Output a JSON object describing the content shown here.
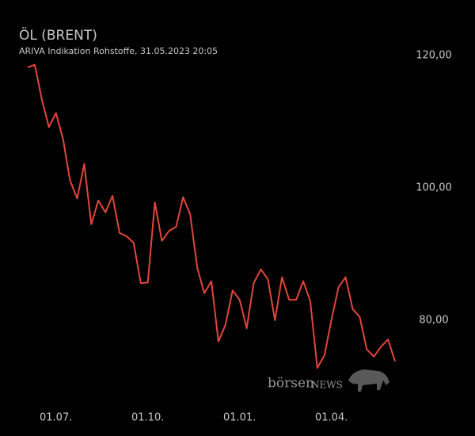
{
  "chart_data": {
    "type": "line",
    "title": "ÖL (BRENT)",
    "subtitle": "ARIVA Indikation Rohstoffe, 31.05.2023 20:05",
    "categories": [
      null,
      null,
      null,
      null,
      "01.07.",
      null,
      null,
      null,
      null,
      null,
      null,
      null,
      null,
      null,
      null,
      null,
      null,
      "01.10.",
      null,
      null,
      null,
      null,
      null,
      null,
      null,
      null,
      null,
      null,
      null,
      null,
      "01.01.",
      null,
      null,
      null,
      null,
      null,
      null,
      null,
      null,
      null,
      null,
      null,
      null,
      "01.04.",
      null,
      null,
      null,
      null,
      null,
      null,
      null,
      null,
      null
    ],
    "values": [
      118.2,
      118.6,
      113.4,
      109.2,
      111.3,
      107.4,
      101.1,
      98.4,
      103.6,
      94.5,
      98.1,
      96.3,
      98.8,
      93.2,
      92.7,
      91.7,
      85.6,
      85.7,
      97.8,
      92.0,
      93.5,
      94.1,
      98.6,
      96.0,
      87.9,
      84.1,
      85.9,
      76.8,
      79.3,
      84.5,
      83.1,
      78.8,
      85.6,
      87.7,
      86.2,
      80.0,
      86.5,
      83.1,
      83.1,
      85.9,
      82.9,
      72.8,
      74.7,
      80.1,
      85.0,
      86.5,
      81.7,
      80.5,
      75.6,
      74.5,
      76.0,
      77.1,
      73.8
    ],
    "color": "#e2463c",
    "ylim": [
      70,
      122
    ],
    "yticks": [
      {
        "value": 80,
        "label": "80,00"
      },
      {
        "value": 100,
        "label": "100,00"
      },
      {
        "value": 120,
        "label": "120,00"
      }
    ],
    "grid": false,
    "watermark": [
      "börsen",
      "NEWS"
    ]
  }
}
